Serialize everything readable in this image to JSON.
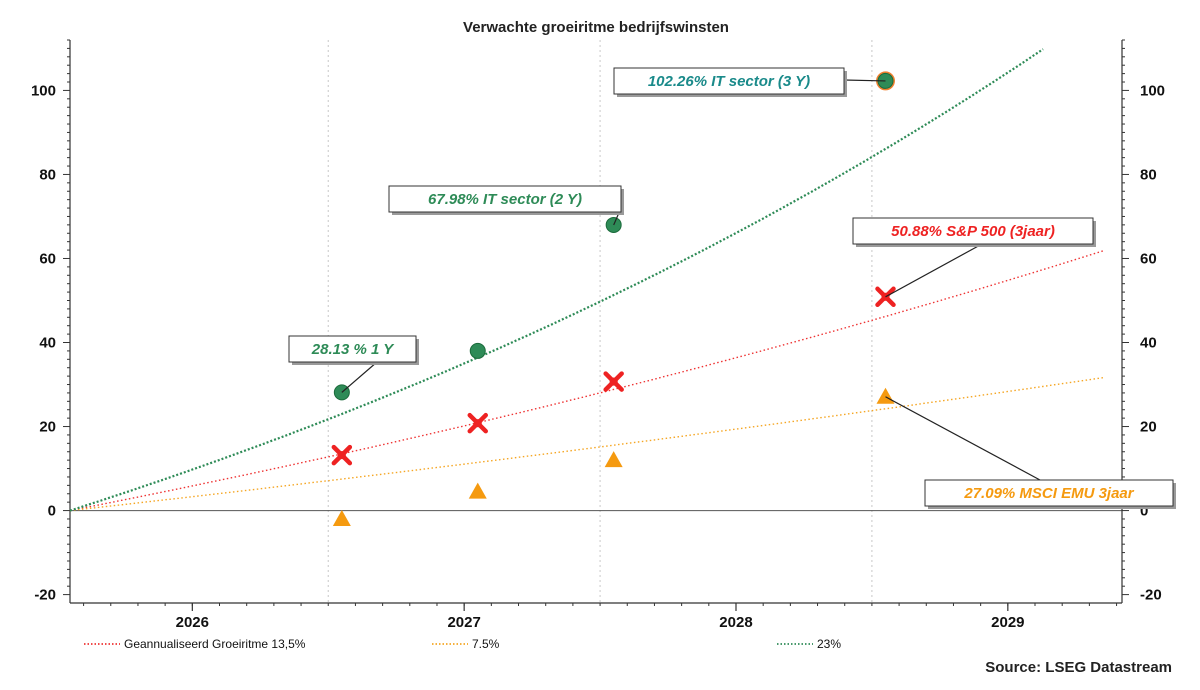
{
  "chart_data": {
    "type": "line",
    "title": "Verwachte groeiritme bedrijfswinsten",
    "x_tick_labels": [
      "2026",
      "2027",
      "2028",
      "2029"
    ],
    "x_ticks": [
      2026.0,
      2027.0,
      2028.0,
      2029.0
    ],
    "xlim": [
      2025.55,
      2029.42
    ],
    "ylim": [
      -22,
      112
    ],
    "y_ticks": [
      -20,
      0,
      20,
      40,
      60,
      80,
      100
    ],
    "grid": true,
    "legend_position": "bottom",
    "series": [
      {
        "name": "Geannualiseerd Groeiritme 13,5%",
        "style": "dotted",
        "color": "#ee3333",
        "annual_rate": 0.135,
        "x": [
          2025.55,
          2029.35
        ],
        "start_year": 2025.55
      },
      {
        "name": "7.5%",
        "style": "dotted",
        "color": "#f5a623",
        "annual_rate": 0.075,
        "x": [
          2025.55,
          2029.35
        ],
        "start_year": 2025.55
      },
      {
        "name": "23%",
        "style": "dotted",
        "color": "#2e8b57",
        "annual_rate": 0.23,
        "x": [
          2025.55,
          2029.42
        ],
        "start_year": 2025.55
      }
    ],
    "points": [
      {
        "group": "IT sector",
        "marker": "circle",
        "color": "#2e8b57",
        "x": 2026.55,
        "y": 28.13
      },
      {
        "group": "IT sector",
        "marker": "circle",
        "color": "#2e8b57",
        "x": 2027.05,
        "y": 38
      },
      {
        "group": "IT sector",
        "marker": "circle",
        "color": "#2e8b57",
        "x": 2027.55,
        "y": 67.98
      },
      {
        "group": "IT sector",
        "marker": "circle",
        "color": "#2e8b57",
        "x": 2028.55,
        "y": 102.26,
        "ring": "#f08030"
      },
      {
        "group": "S&P 500",
        "marker": "cross",
        "color": "#ee2222",
        "x": 2026.55,
        "y": 13.2
      },
      {
        "group": "S&P 500",
        "marker": "cross",
        "color": "#ee2222",
        "x": 2027.05,
        "y": 20.8
      },
      {
        "group": "S&P 500",
        "marker": "cross",
        "color": "#ee2222",
        "x": 2027.55,
        "y": 30.7
      },
      {
        "group": "S&P 500",
        "marker": "cross",
        "color": "#ee2222",
        "x": 2028.55,
        "y": 50.88
      },
      {
        "group": "MSCI EMU",
        "marker": "triangle",
        "color": "#f59a10",
        "x": 2026.55,
        "y": -2
      },
      {
        "group": "MSCI EMU",
        "marker": "triangle",
        "color": "#f59a10",
        "x": 2027.05,
        "y": 4.5
      },
      {
        "group": "MSCI EMU",
        "marker": "triangle",
        "color": "#f59a10",
        "x": 2027.55,
        "y": 12
      },
      {
        "group": "MSCI EMU",
        "marker": "triangle",
        "color": "#f59a10",
        "x": 2028.55,
        "y": 27.09
      }
    ],
    "annotations": [
      {
        "text": "102.26% IT sector (3 Y)",
        "color": "#1a8a8a",
        "target_point": 3
      },
      {
        "text": "67.98%  IT sector  (2 Y)",
        "color": "#2e8b57",
        "target_point": 2
      },
      {
        "text": "28.13 % 1 Y",
        "color": "#2e8b57",
        "target_point": 0
      },
      {
        "text": "50.88%  S&P 500 (3jaar)",
        "color": "#ee2222",
        "target_point": 7
      },
      {
        "text": "27.09%  MSCI EMU 3jaar",
        "color": "#f59a10",
        "target_point": 11
      }
    ],
    "source": "Source: LSEG Datastream"
  }
}
